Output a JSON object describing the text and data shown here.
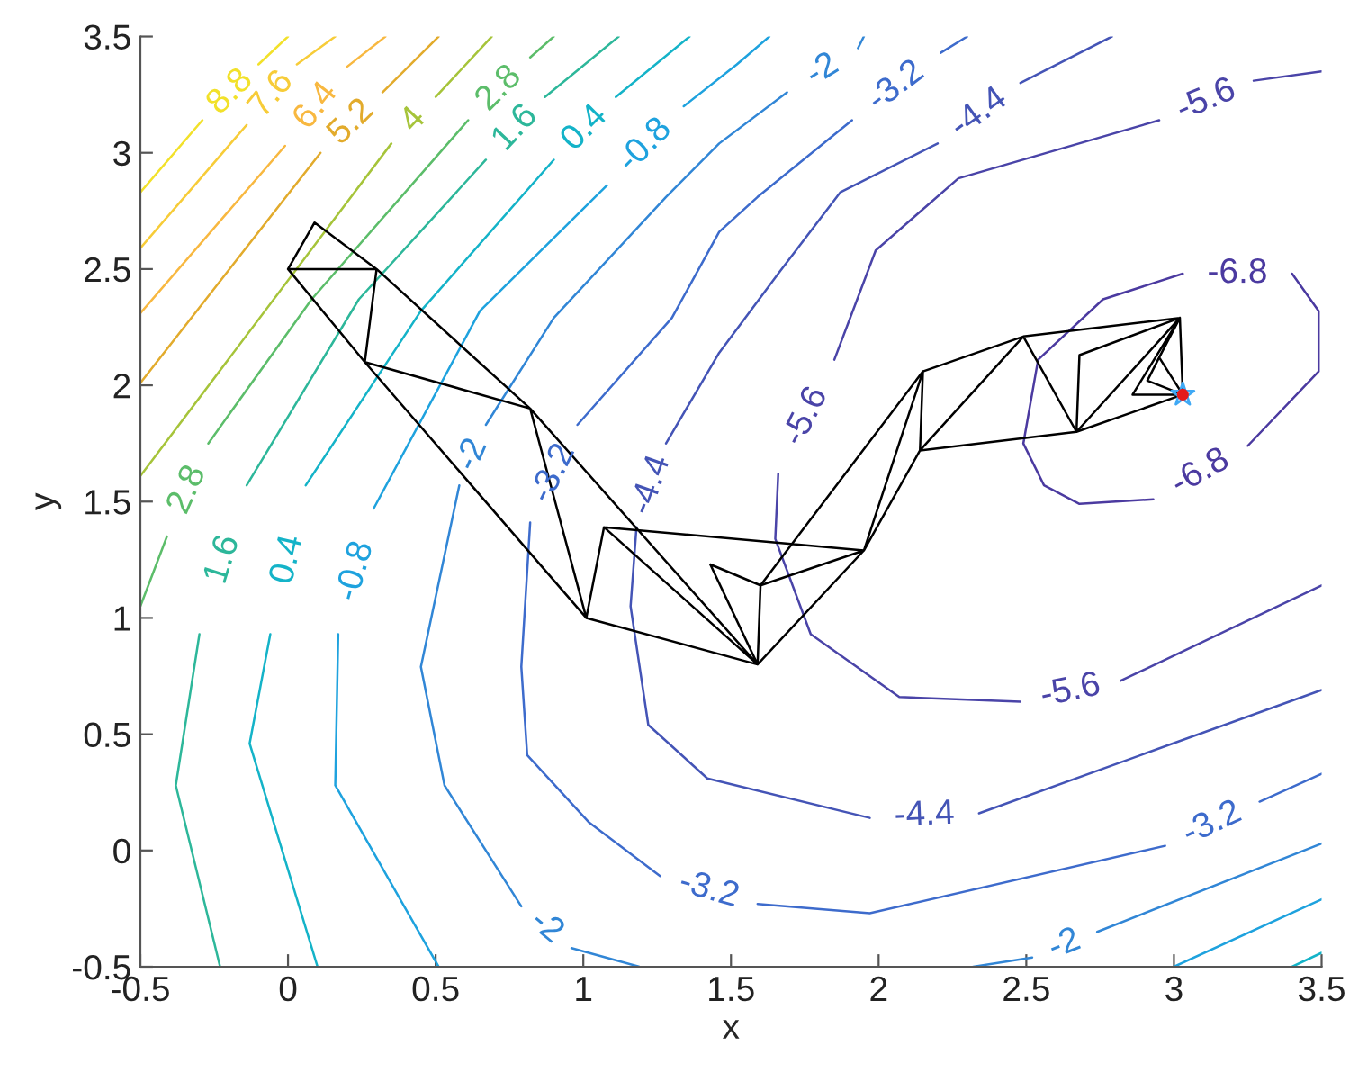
{
  "chart_data": {
    "type": "line",
    "xlabel": "x",
    "ylabel": "y",
    "xlim": [
      -0.5,
      3.5
    ],
    "ylim": [
      -0.5,
      3.5
    ],
    "xticks": [
      -0.5,
      0,
      0.5,
      1,
      1.5,
      2,
      2.5,
      3,
      3.5
    ],
    "yticks": [
      -0.5,
      0,
      0.5,
      1,
      1.5,
      2,
      2.5,
      3,
      3.5
    ],
    "grid": false,
    "legend": false,
    "series": [
      {
        "name": "8.8",
        "color": "#f2e12a",
        "x": [
          -0.5,
          -0.29,
          null,
          -0.1,
          0.0
        ],
        "values": [
          2.83,
          3.14,
          null,
          3.38,
          3.5
        ]
      },
      {
        "name": "7.6",
        "color": "#f7cc38",
        "x": [
          -0.5,
          -0.14,
          null,
          0.03,
          0.16
        ],
        "values": [
          2.59,
          3.12,
          null,
          3.38,
          3.5
        ]
      },
      {
        "name": "6.4",
        "color": "#f8b840",
        "x": [
          -0.5,
          -0.01,
          null,
          0.2,
          0.33
        ],
        "values": [
          2.31,
          3.03,
          null,
          3.37,
          3.5
        ]
      },
      {
        "name": "5.2",
        "color": "#e2ab2c",
        "x": [
          -0.5,
          0.11,
          null,
          0.32,
          0.51
        ],
        "values": [
          2.01,
          3.0,
          null,
          3.26,
          3.5
        ]
      },
      {
        "name": "4",
        "color": "#a6c43a",
        "x": [
          -0.5,
          0.35,
          null,
          0.5,
          0.69
        ],
        "values": [
          1.61,
          3.04,
          null,
          3.24,
          3.5
        ]
      },
      {
        "name": "2.8",
        "color": "#5cbd6a",
        "x": [
          -0.5,
          -0.41,
          null,
          -0.27,
          0.08,
          0.61,
          null,
          0.82,
          0.9
        ],
        "values": [
          1.05,
          1.35,
          null,
          1.75,
          2.37,
          3.14,
          null,
          3.41,
          3.5
        ]
      },
      {
        "name": "1.6",
        "color": "#2db79a",
        "x": [
          -0.23,
          -0.38,
          -0.3,
          null,
          -0.14,
          0.24,
          0.67,
          null,
          0.87,
          1.12
        ],
        "values": [
          -0.5,
          0.28,
          0.93,
          null,
          1.57,
          2.37,
          2.97,
          null,
          3.24,
          3.5
        ]
      },
      {
        "name": "0.4",
        "color": "#14b3c8",
        "x": [
          0.1,
          -0.13,
          -0.06,
          null,
          0.06,
          0.45,
          0.9,
          null,
          1.11,
          1.36
        ],
        "values": [
          -0.5,
          0.46,
          0.93,
          null,
          1.57,
          2.32,
          2.97,
          null,
          3.24,
          3.5
        ]
      },
      {
        "color": "#14b3c8",
        "x": [
          3.4,
          3.5
        ],
        "values": [
          -0.5,
          -0.44
        ]
      },
      {
        "name": "-0.8",
        "color": "#1ea2de",
        "x": [
          0.51,
          0.16,
          0.17,
          null,
          0.29,
          0.65,
          1.08,
          null,
          1.34,
          1.52,
          1.63
        ],
        "values": [
          -0.5,
          0.28,
          0.93,
          null,
          1.47,
          2.32,
          2.86,
          null,
          3.2,
          3.38,
          3.5
        ]
      },
      {
        "color": "#1ea2de",
        "x": [
          3.0,
          3.5
        ],
        "values": [
          -0.5,
          -0.21
        ]
      },
      {
        "name": "-2",
        "color": "#3186d6",
        "x": [
          1.19,
          0.96,
          null,
          0.79,
          0.53,
          0.45,
          0.58,
          null,
          0.67,
          0.9,
          1.28,
          1.46,
          1.69,
          null,
          1.93,
          1.95
        ],
        "values": [
          -0.5,
          -0.42,
          null,
          -0.24,
          0.28,
          0.79,
          1.57,
          null,
          1.83,
          2.29,
          2.81,
          3.04,
          3.26,
          null,
          3.45,
          3.5
        ]
      },
      {
        "name": "-2",
        "color": "#3186d6",
        "x": [
          2.32,
          2.52,
          null,
          2.74,
          3.5
        ],
        "values": [
          -0.5,
          -0.46,
          null,
          -0.35,
          0.03
        ]
      },
      {
        "name": "-3.2",
        "color": "#3d6bcc",
        "x": [
          2.3,
          2.21,
          null,
          1.91,
          1.59,
          1.46,
          1.3,
          0.98,
          null,
          0.82,
          0.79,
          0.81,
          1.02,
          1.26,
          null,
          1.59,
          1.97,
          2.97,
          null,
          3.29,
          3.5
        ],
        "values": [
          3.5,
          3.43,
          null,
          3.14,
          2.81,
          2.66,
          2.29,
          1.83,
          null,
          1.41,
          0.79,
          0.41,
          0.12,
          -0.11,
          null,
          -0.23,
          -0.27,
          0.02,
          null,
          0.21,
          0.33
        ]
      },
      {
        "name": "-4.4",
        "color": "#4454b6",
        "x": [
          2.79,
          2.48,
          null,
          2.2,
          1.87,
          1.66,
          1.46,
          1.28,
          null,
          1.18,
          1.16,
          1.22,
          1.42,
          1.97,
          null,
          2.34,
          3.5
        ],
        "values": [
          3.5,
          3.3,
          null,
          3.04,
          2.83,
          2.48,
          2.14,
          1.75,
          null,
          1.39,
          1.05,
          0.54,
          0.31,
          0.14,
          null,
          0.16,
          0.69
        ]
      },
      {
        "name": "-5.6",
        "color": "#4a44a8",
        "x": [
          3.5,
          3.27,
          null,
          2.95,
          2.27,
          1.99,
          1.85,
          null,
          1.66,
          1.65,
          1.77,
          2.07,
          2.48,
          null,
          2.82,
          3.5
        ],
        "values": [
          3.35,
          3.31,
          null,
          3.14,
          2.89,
          2.58,
          2.11,
          null,
          1.62,
          1.34,
          0.93,
          0.66,
          0.64,
          null,
          0.73,
          1.14
        ]
      },
      {
        "name": "-6.8",
        "color": "#4b3aa0",
        "x": [
          3.03,
          2.76,
          2.54,
          2.49,
          2.56,
          2.68,
          2.93,
          null,
          3.25,
          3.49,
          3.49,
          3.4,
          null,
          3.03
        ],
        "values": [
          2.48,
          2.37,
          2.11,
          1.75,
          1.57,
          1.49,
          1.51,
          null,
          1.74,
          2.06,
          2.32,
          2.48,
          null,
          2.48
        ]
      },
      {
        "color": "#000000",
        "x": [
          0,
          0.09,
          0.3,
          0,
          0.26,
          0.3,
          0.82,
          0.26,
          1.01,
          0.82,
          1.59,
          1.01,
          1.07,
          1.59,
          1.43,
          1.6,
          1.59,
          1.95,
          1.07,
          1.95,
          1.6,
          2.15,
          1.95,
          2.14,
          2.15,
          2.49,
          2.14,
          2.67,
          2.49,
          3.02,
          2.67,
          2.68,
          3.02,
          3.03,
          2.67,
          3.03,
          2.86,
          3.02,
          2.95,
          3.03,
          2.91,
          2.95
        ],
        "values": [
          2.5,
          2.7,
          2.5,
          2.5,
          2.1,
          2.5,
          1.9,
          2.1,
          1.0,
          1.9,
          0.8,
          1.0,
          1.39,
          0.8,
          1.23,
          1.14,
          0.8,
          1.29,
          1.39,
          1.29,
          1.14,
          2.06,
          1.29,
          1.72,
          2.06,
          2.21,
          1.72,
          1.8,
          2.21,
          2.29,
          1.8,
          2.13,
          2.29,
          1.96,
          1.8,
          1.96,
          1.96,
          2.29,
          2.12,
          1.96,
          2.02,
          2.12
        ]
      },
      {
        "type": "scatter",
        "color": "#e41a1c",
        "marker": "circle",
        "x": [
          3.03
        ],
        "values": [
          1.96
        ]
      },
      {
        "type": "scatter",
        "color": "#3fa9f5",
        "marker": "star",
        "x": [
          3.03
        ],
        "values": [
          1.96
        ]
      }
    ]
  }
}
